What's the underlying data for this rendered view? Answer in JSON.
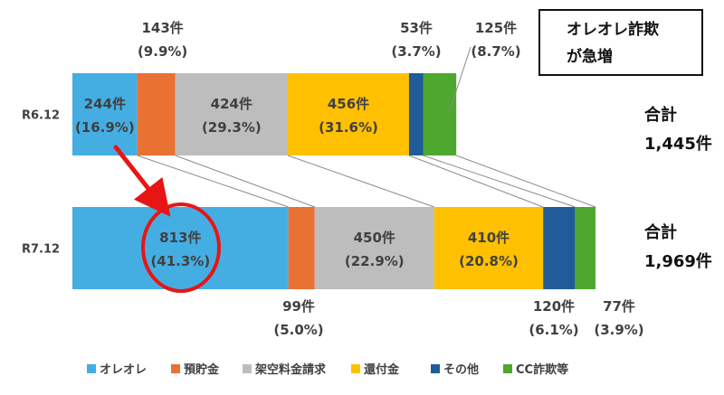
{
  "chart_data": {
    "type": "bar",
    "orientation": "horizontal",
    "stacked": true,
    "categories": [
      "R6.12",
      "R7.12"
    ],
    "series": [
      {
        "name": "オレオレ",
        "color": "#44AEE3",
        "values": [
          244,
          813
        ],
        "labels": [
          "244件",
          "813件"
        ],
        "pct_labels": [
          "(16.9%)",
          "(41.3%)"
        ]
      },
      {
        "name": "預貯金",
        "color": "#E97132",
        "values": [
          143,
          99
        ],
        "labels": [
          "143件",
          "99件"
        ],
        "pct_labels": [
          "(9.9%)",
          "(5.0%)"
        ]
      },
      {
        "name": "架空料金請求",
        "color": "#BDBDBD",
        "values": [
          424,
          450
        ],
        "labels": [
          "424件",
          "450件"
        ],
        "pct_labels": [
          "(29.3%)",
          "(22.9%)"
        ]
      },
      {
        "name": "還付金",
        "color": "#FFC000",
        "values": [
          456,
          410
        ],
        "labels": [
          "456件",
          "410件"
        ],
        "pct_labels": [
          "(31.6%)",
          "(20.8%)"
        ]
      },
      {
        "name": "その他",
        "color": "#1F5C99",
        "values": [
          53,
          120
        ],
        "labels": [
          "53件",
          "120件"
        ],
        "pct_labels": [
          "(3.7%)",
          "(6.1%)"
        ]
      },
      {
        "name": "CC詐欺等",
        "color": "#4EA72E",
        "values": [
          125,
          77
        ],
        "labels": [
          "125件",
          "77件"
        ],
        "pct_labels": [
          "(8.7%)",
          "(3.9%)"
        ]
      }
    ],
    "totals": {
      "label": "合計",
      "values": [
        "1,445件",
        "1,969件"
      ]
    },
    "callout": {
      "lines": [
        "オレオレ詐欺",
        "が急増"
      ]
    },
    "highlight": {
      "series": "オレオレ",
      "from": "R6.12",
      "to": "R7.12",
      "color": "#E81515"
    },
    "legend_position": "bottom",
    "grid": false
  }
}
